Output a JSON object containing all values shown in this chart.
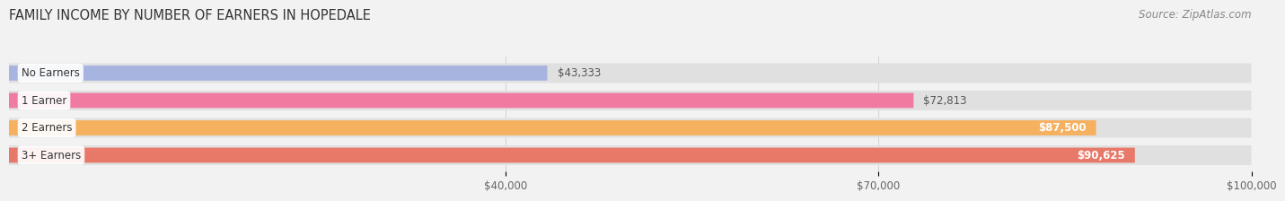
{
  "title": "FAMILY INCOME BY NUMBER OF EARNERS IN HOPEDALE",
  "source": "Source: ZipAtlas.com",
  "categories": [
    "No Earners",
    "1 Earner",
    "2 Earners",
    "3+ Earners"
  ],
  "values": [
    43333,
    72813,
    87500,
    90625
  ],
  "labels": [
    "$43,333",
    "$72,813",
    "$87,500",
    "$90,625"
  ],
  "bar_colors": [
    "#a8b4e0",
    "#f07aa0",
    "#f5b060",
    "#e87868"
  ],
  "label_colors": [
    "#555555",
    "#555555",
    "#ffffff",
    "#ffffff"
  ],
  "xmin": 0,
  "xmax": 100000,
  "xticks": [
    40000,
    70000,
    100000
  ],
  "xtick_labels": [
    "$40,000",
    "$70,000",
    "$100,000"
  ],
  "background_color": "#f2f2f2",
  "bar_bg_color": "#e0e0e0",
  "title_fontsize": 10.5,
  "source_fontsize": 8.5,
  "bar_label_fontsize": 8.5,
  "category_fontsize": 8.5,
  "tick_fontsize": 8.5
}
